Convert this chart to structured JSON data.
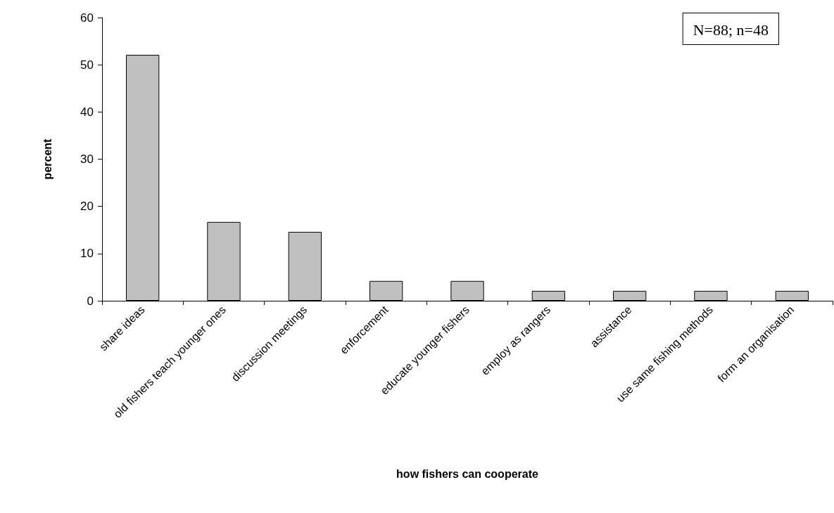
{
  "chart_data": {
    "type": "bar",
    "xlabel": "how fishers can cooperate",
    "ylabel": "percent",
    "categories": [
      "share ideas",
      "old fishers teach younger ones",
      "discussion meetings",
      "enforcement",
      "educate younger fishers",
      "employ as rangers",
      "assistance",
      "use same fishing methods",
      "form an organisation"
    ],
    "values": [
      52.1,
      16.7,
      14.6,
      4.2,
      4.2,
      2.1,
      2.1,
      2.1,
      2.1
    ],
    "color": "#c0c0c0",
    "ylim": [
      0,
      60
    ],
    "yticks": [
      0,
      10,
      20,
      30,
      40,
      50,
      60
    ],
    "grid": false,
    "annotations": [
      "N=88; n=48"
    ]
  }
}
